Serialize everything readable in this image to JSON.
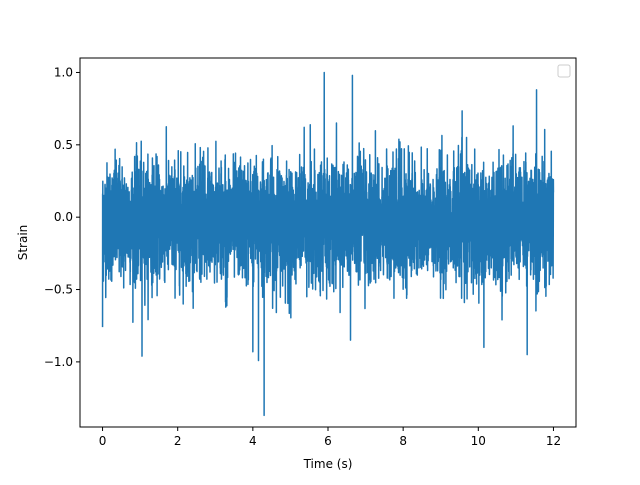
{
  "chart_data": {
    "type": "line",
    "title": "",
    "xlabel": "Time (s)",
    "ylabel": "Strain",
    "xlim": [
      -0.6,
      12.6
    ],
    "ylim": [
      -1.45,
      1.1
    ],
    "x_ticks": [
      0,
      2,
      4,
      6,
      8,
      10,
      12
    ],
    "x_tick_labels": [
      "0",
      "2",
      "4",
      "6",
      "8",
      "10",
      "12"
    ],
    "y_ticks": [
      -1.0,
      -0.5,
      0.0,
      0.5,
      1.0
    ],
    "y_tick_labels": [
      "−1.0",
      "−0.5",
      "0.0",
      "0.5",
      "1.0"
    ],
    "grid": false,
    "legend": {
      "location": "upper-right",
      "entries": []
    },
    "series": [
      {
        "color": "#1f77b4",
        "x_start": 0.0,
        "x_end": 12.0,
        "typical_range": [
          -0.55,
          0.5
        ],
        "envelope": {
          "x": [
            0.0,
            0.5,
            1.0,
            1.5,
            2.0,
            2.5,
            3.0,
            3.5,
            4.0,
            4.3,
            4.5,
            5.0,
            5.5,
            5.9,
            6.2,
            6.6,
            7.0,
            7.5,
            8.0,
            8.5,
            9.0,
            9.5,
            10.0,
            10.5,
            11.0,
            11.5,
            12.0
          ],
          "max": [
            0.45,
            0.65,
            0.6,
            0.8,
            0.7,
            0.65,
            0.75,
            0.8,
            0.7,
            0.75,
            0.8,
            0.8,
            0.75,
            1.0,
            0.7,
            0.98,
            0.75,
            0.7,
            0.9,
            0.7,
            0.75,
            0.8,
            0.8,
            0.7,
            0.85,
            0.88,
            0.4
          ],
          "min": [
            -0.76,
            -0.6,
            -0.96,
            -0.75,
            -0.65,
            -0.65,
            -0.7,
            -0.6,
            -0.93,
            -1.37,
            -0.8,
            -0.7,
            -0.75,
            -0.7,
            -0.72,
            -0.85,
            -0.75,
            -0.6,
            -0.8,
            -0.75,
            -0.7,
            -0.6,
            -0.9,
            -0.8,
            -0.76,
            -0.75,
            -0.75
          ]
        },
        "extremes": [
          {
            "x": 0.0,
            "y": -0.76
          },
          {
            "x": 1.05,
            "y": -0.96
          },
          {
            "x": 4.0,
            "y": -0.93
          },
          {
            "x": 4.15,
            "y": -0.99
          },
          {
            "x": 4.3,
            "y": -1.37
          },
          {
            "x": 5.9,
            "y": 1.0
          },
          {
            "x": 6.65,
            "y": 0.98
          },
          {
            "x": 6.6,
            "y": -0.85
          },
          {
            "x": 10.15,
            "y": -0.9
          },
          {
            "x": 11.3,
            "y": -0.95
          },
          {
            "x": 11.55,
            "y": 0.88
          }
        ]
      }
    ]
  }
}
